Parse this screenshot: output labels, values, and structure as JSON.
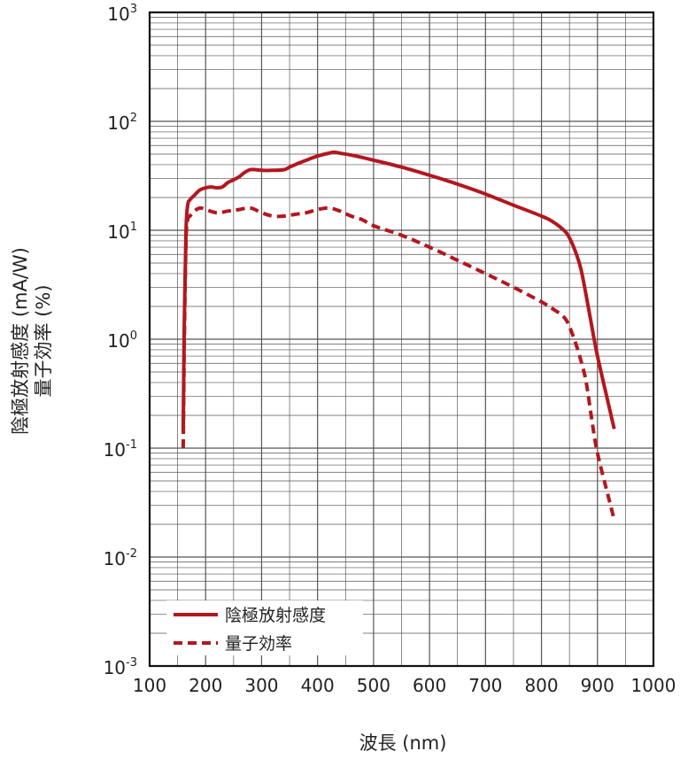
{
  "chart_data": {
    "type": "line",
    "title": "",
    "xlabel": "波長 (nm)",
    "ylabel_line1": "陰極放射感度 (mA/W)",
    "ylabel_line2": "量子効率 (%)",
    "xlim": [
      100,
      1000
    ],
    "ylim": [
      0.001,
      1000
    ],
    "yscale": "log",
    "grid": true,
    "legend_position": "bottom-left",
    "x_ticks": [
      "100",
      "200",
      "300",
      "400",
      "500",
      "600",
      "700",
      "800",
      "900",
      "1000"
    ],
    "y_ticks": [
      {
        "base": "10",
        "exp": "-3"
      },
      {
        "base": "10",
        "exp": "-2"
      },
      {
        "base": "10",
        "exp": "-1"
      },
      {
        "base": "10",
        "exp": "0"
      },
      {
        "base": "10",
        "exp": "1"
      },
      {
        "base": "10",
        "exp": "2"
      },
      {
        "base": "10",
        "exp": "3"
      }
    ],
    "series": [
      {
        "name": "陰極放射感度",
        "color": "#b3171f",
        "style": "solid",
        "x": [
          160,
          162,
          165,
          168,
          172,
          180,
          190,
          200,
          210,
          220,
          230,
          240,
          250,
          260,
          270,
          280,
          290,
          300,
          320,
          340,
          350,
          360,
          380,
          400,
          420,
          430,
          440,
          460,
          500,
          550,
          600,
          650,
          700,
          750,
          800,
          820,
          840,
          850,
          860,
          870,
          880,
          890,
          900,
          920,
          930
        ],
        "y": [
          0.14,
          1.5,
          10,
          17,
          19,
          21,
          23.5,
          24.5,
          25,
          24.5,
          25,
          27.5,
          29,
          31,
          34,
          36,
          36,
          35.5,
          35.5,
          36,
          38,
          40,
          44,
          48,
          51,
          52,
          51,
          49,
          44,
          38,
          32,
          26.5,
          21.5,
          17,
          13.5,
          12,
          10,
          8.5,
          6.5,
          4.5,
          2.5,
          1.3,
          0.7,
          0.25,
          0.15
        ]
      },
      {
        "name": "量子効率",
        "color": "#b3171f",
        "style": "dashed",
        "x": [
          160,
          162,
          165,
          168,
          172,
          180,
          190,
          200,
          220,
          240,
          260,
          280,
          300,
          320,
          340,
          360,
          380,
          400,
          420,
          440,
          460,
          480,
          500,
          550,
          600,
          650,
          700,
          750,
          800,
          820,
          840,
          850,
          860,
          870,
          880,
          890,
          900,
          920,
          930
        ],
        "y": [
          0.1,
          1.0,
          8,
          12.5,
          13.5,
          15,
          16,
          15.5,
          14.5,
          15,
          15.5,
          16,
          14.5,
          13.5,
          13.5,
          14,
          14.5,
          15.5,
          16,
          15,
          13.5,
          12.5,
          11,
          9,
          7,
          5.3,
          4,
          3,
          2.2,
          1.9,
          1.6,
          1.3,
          0.95,
          0.65,
          0.4,
          0.18,
          0.09,
          0.035,
          0.022
        ]
      }
    ]
  }
}
